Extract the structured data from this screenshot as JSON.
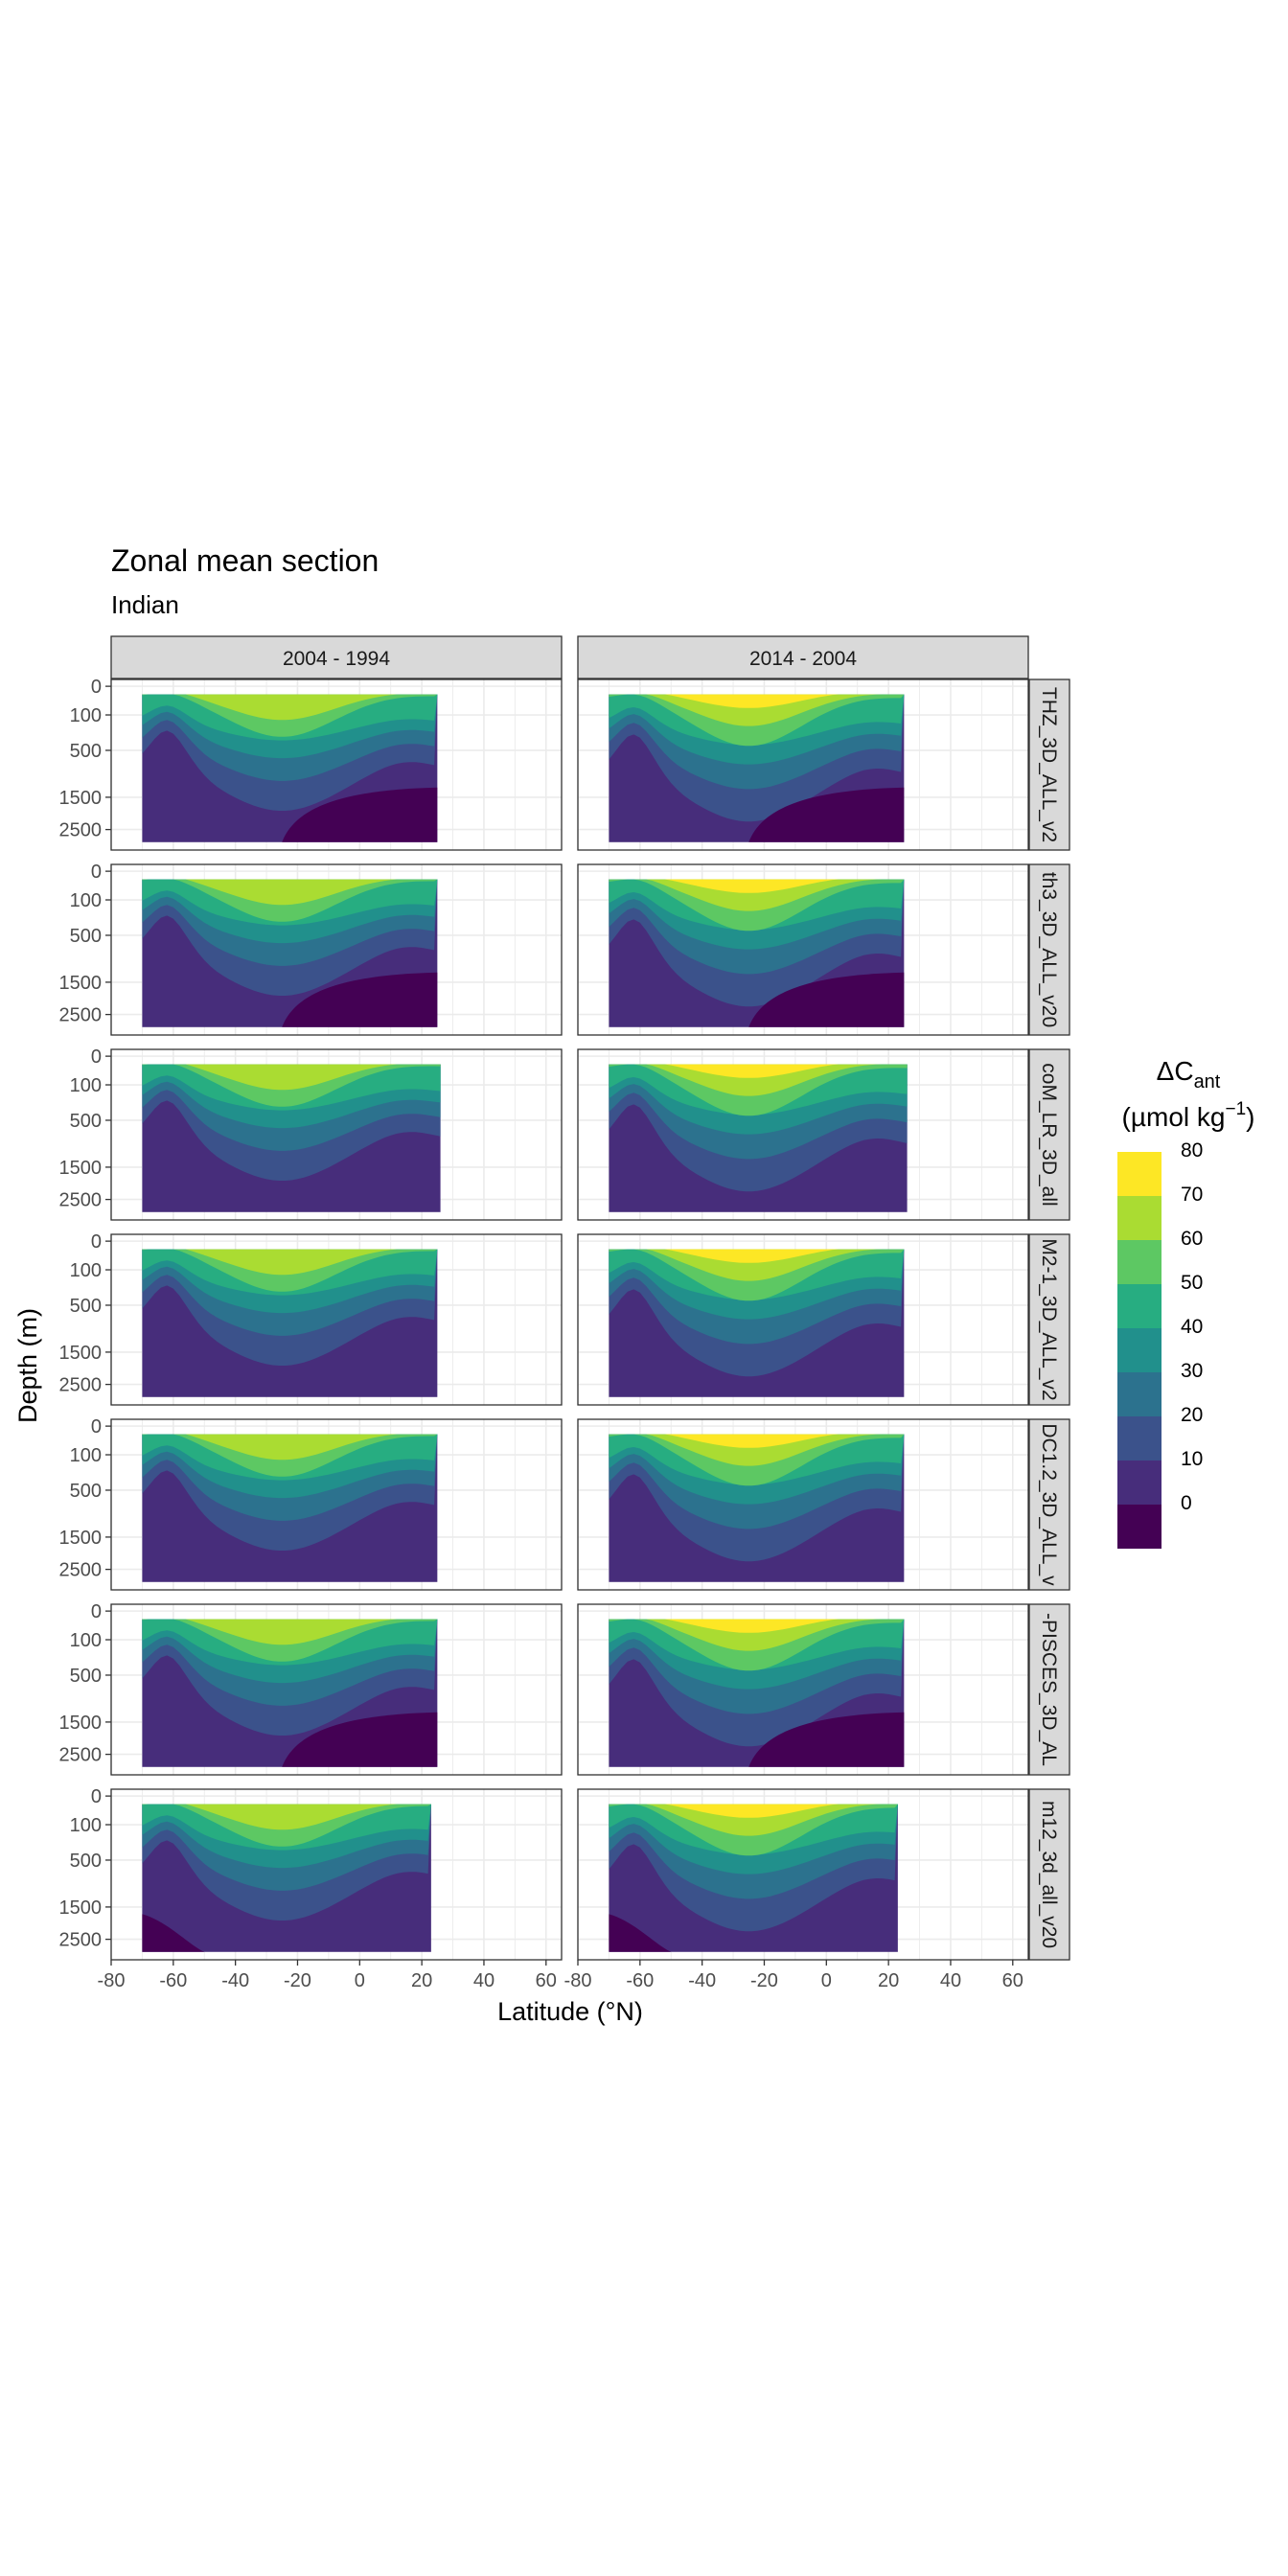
{
  "title": "Zonal mean section",
  "subtitle": "Indian",
  "colors": {
    "strip_fill": "#D9D9D9",
    "panel_border": "#333333",
    "grid": "#EBEBEB",
    "text": "#000000",
    "tick_text": "#4D4D4D"
  },
  "chart_data": {
    "type": "heatmap",
    "kind": "filled-contour zonal mean sections, faceted",
    "columns": [
      "2004 - 1994",
      "2014 - 2004"
    ],
    "rows": [
      {
        "label": "THZ_3D_ALL_v2",
        "xmax": 25,
        "deep_min_region": true
      },
      {
        "label": "th3_3D_ALL_v20",
        "xmax": 25,
        "deep_min_region": true
      },
      {
        "label": "coM_LR_3D_all",
        "xmax": 26,
        "deep_min_region": false
      },
      {
        "label": "M2-1_3D_ALL_v2",
        "xmax": 25,
        "deep_min_region": false
      },
      {
        "label": "DC1.2_3D_ALL_v",
        "xmax": 25,
        "deep_min_region": false
      },
      {
        "label": "-PISCES_3D_AL",
        "xmax": 25,
        "deep_min_region": true
      },
      {
        "label": "m12_3d_all_v20",
        "xmax": 23,
        "deep_min_region": false
      }
    ],
    "xlabel": "Latitude (°N)",
    "ylabel": "Depth (m)",
    "xlim": [
      -80,
      65
    ],
    "xticks": [
      -80,
      -60,
      -40,
      -20,
      0,
      20,
      40,
      60
    ],
    "xtick_labels": [
      "-80",
      "-60",
      "-40",
      "-20",
      "0",
      "20",
      "40",
      "60"
    ],
    "yticks": [
      0,
      100,
      500,
      1500,
      2500
    ],
    "ytick_labels": [
      "0",
      "100",
      "500",
      "1500",
      "2500"
    ],
    "ylim": [
      0,
      3000
    ],
    "data_xmin": -70,
    "legend": {
      "title": "ΔC",
      "title_sub": "ant",
      "units_pre": "(µmol kg",
      "units_sup": "−1",
      "units_post": ")",
      "breaks": [
        0,
        10,
        20,
        30,
        40,
        50,
        60,
        70,
        80
      ],
      "labels": [
        "0",
        "10",
        "20",
        "30",
        "40",
        "50",
        "60",
        "70",
        "80"
      ],
      "position": "right",
      "colors": [
        "#440154",
        "#472D7B",
        "#3B528B",
        "#2C728E",
        "#21908C",
        "#27AD81",
        "#5DC863",
        "#AADC32",
        "#FDE725"
      ]
    }
  }
}
